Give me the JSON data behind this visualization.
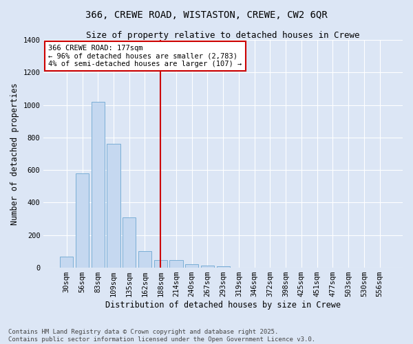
{
  "title_line1": "366, CREWE ROAD, WISTASTON, CREWE, CW2 6QR",
  "title_line2": "Size of property relative to detached houses in Crewe",
  "xlabel": "Distribution of detached houses by size in Crewe",
  "ylabel": "Number of detached properties",
  "bar_color": "#c5d8f0",
  "bar_edge_color": "#7aaed6",
  "background_color": "#dce6f5",
  "grid_color": "#ffffff",
  "categories": [
    "30sqm",
    "56sqm",
    "83sqm",
    "109sqm",
    "135sqm",
    "162sqm",
    "188sqm",
    "214sqm",
    "240sqm",
    "267sqm",
    "293sqm",
    "319sqm",
    "346sqm",
    "372sqm",
    "398sqm",
    "425sqm",
    "451sqm",
    "477sqm",
    "503sqm",
    "530sqm",
    "556sqm"
  ],
  "values": [
    70,
    580,
    1020,
    760,
    310,
    100,
    45,
    45,
    20,
    15,
    10,
    0,
    0,
    0,
    0,
    0,
    0,
    0,
    0,
    0,
    0
  ],
  "ylim": [
    0,
    1400
  ],
  "yticks": [
    0,
    200,
    400,
    600,
    800,
    1000,
    1200,
    1400
  ],
  "vline_x": 6.0,
  "vline_color": "#cc0000",
  "annotation_text": "366 CREWE ROAD: 177sqm\n← 96% of detached houses are smaller (2,783)\n4% of semi-detached houses are larger (107) →",
  "annotation_box_color": "#ffffff",
  "annotation_box_edge_color": "#cc0000",
  "footer_text": "Contains HM Land Registry data © Crown copyright and database right 2025.\nContains public sector information licensed under the Open Government Licence v3.0.",
  "title_fontsize": 10,
  "subtitle_fontsize": 9,
  "tick_fontsize": 7.5,
  "label_fontsize": 8.5,
  "annotation_fontsize": 7.5,
  "footer_fontsize": 6.5
}
